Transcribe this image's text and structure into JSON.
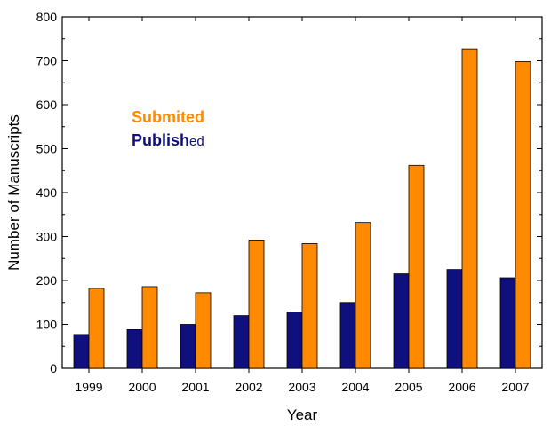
{
  "chart_data": {
    "type": "bar",
    "title": "",
    "xlabel": "Year",
    "ylabel": "Number of Manuscripts",
    "categories": [
      "1999",
      "2000",
      "2001",
      "2002",
      "2003",
      "2004",
      "2005",
      "2006",
      "2007"
    ],
    "series": [
      {
        "name": "Published",
        "color": "#0f0f7d",
        "values": [
          77,
          88,
          100,
          120,
          128,
          150,
          215,
          225,
          206
        ]
      },
      {
        "name": "Submited",
        "color": "#ff8a00",
        "values": [
          182,
          186,
          172,
          292,
          284,
          332,
          462,
          727,
          698
        ]
      }
    ],
    "ylim": [
      0,
      800
    ],
    "yticks": [
      "0",
      "100",
      "200",
      "300",
      "400",
      "500",
      "600",
      "700",
      "800"
    ],
    "grid": false,
    "legend_position": "top-left"
  },
  "legend": {
    "submitted_label": "Submited",
    "published_main": "Publish",
    "published_suffix": "ed"
  }
}
